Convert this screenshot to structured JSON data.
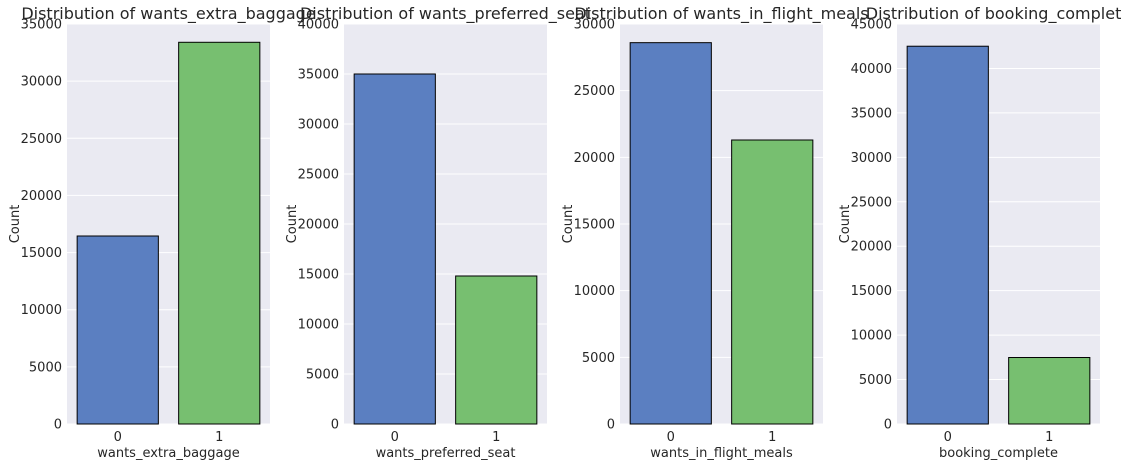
{
  "colors": {
    "background": "#eaeaf2",
    "bar_0": "#5b7fc1",
    "bar_1": "#77bf70",
    "edge": "#000000",
    "grid": "#ffffff"
  },
  "chart_data": [
    {
      "type": "bar",
      "title": "Distribution of wants_extra_baggage",
      "xlabel": "wants_extra_baggage",
      "ylabel": "Count",
      "categories": [
        "0",
        "1"
      ],
      "values": [
        16450,
        33400
      ],
      "ylim": [
        0,
        35000
      ],
      "yticks": [
        "0",
        "5000",
        "10000",
        "15000",
        "20000",
        "25000",
        "30000",
        "35000"
      ],
      "grid": true
    },
    {
      "type": "bar",
      "title": "Distribution of wants_preferred_seat",
      "xlabel": "wants_preferred_seat",
      "ylabel": "Count",
      "categories": [
        "0",
        "1"
      ],
      "values": [
        35000,
        14800
      ],
      "ylim": [
        0,
        40000
      ],
      "yticks": [
        "0",
        "5000",
        "10000",
        "15000",
        "20000",
        "25000",
        "30000",
        "35000",
        "40000"
      ],
      "grid": true
    },
    {
      "type": "bar",
      "title": "Distribution of wants_in_flight_meals",
      "xlabel": "wants_in_flight_meals",
      "ylabel": "Count",
      "categories": [
        "0",
        "1"
      ],
      "values": [
        28600,
        21300
      ],
      "ylim": [
        0,
        30000
      ],
      "yticks": [
        "0",
        "5000",
        "10000",
        "15000",
        "20000",
        "25000",
        "30000"
      ],
      "grid": true
    },
    {
      "type": "bar",
      "title": "Distribution of booking_complete",
      "xlabel": "booking_complete",
      "ylabel": "Count",
      "categories": [
        "0",
        "1"
      ],
      "values": [
        42500,
        7480
      ],
      "ylim": [
        0,
        45000
      ],
      "yticks": [
        "0",
        "5000",
        "10000",
        "15000",
        "20000",
        "25000",
        "30000",
        "35000",
        "40000",
        "45000"
      ],
      "grid": true
    }
  ]
}
